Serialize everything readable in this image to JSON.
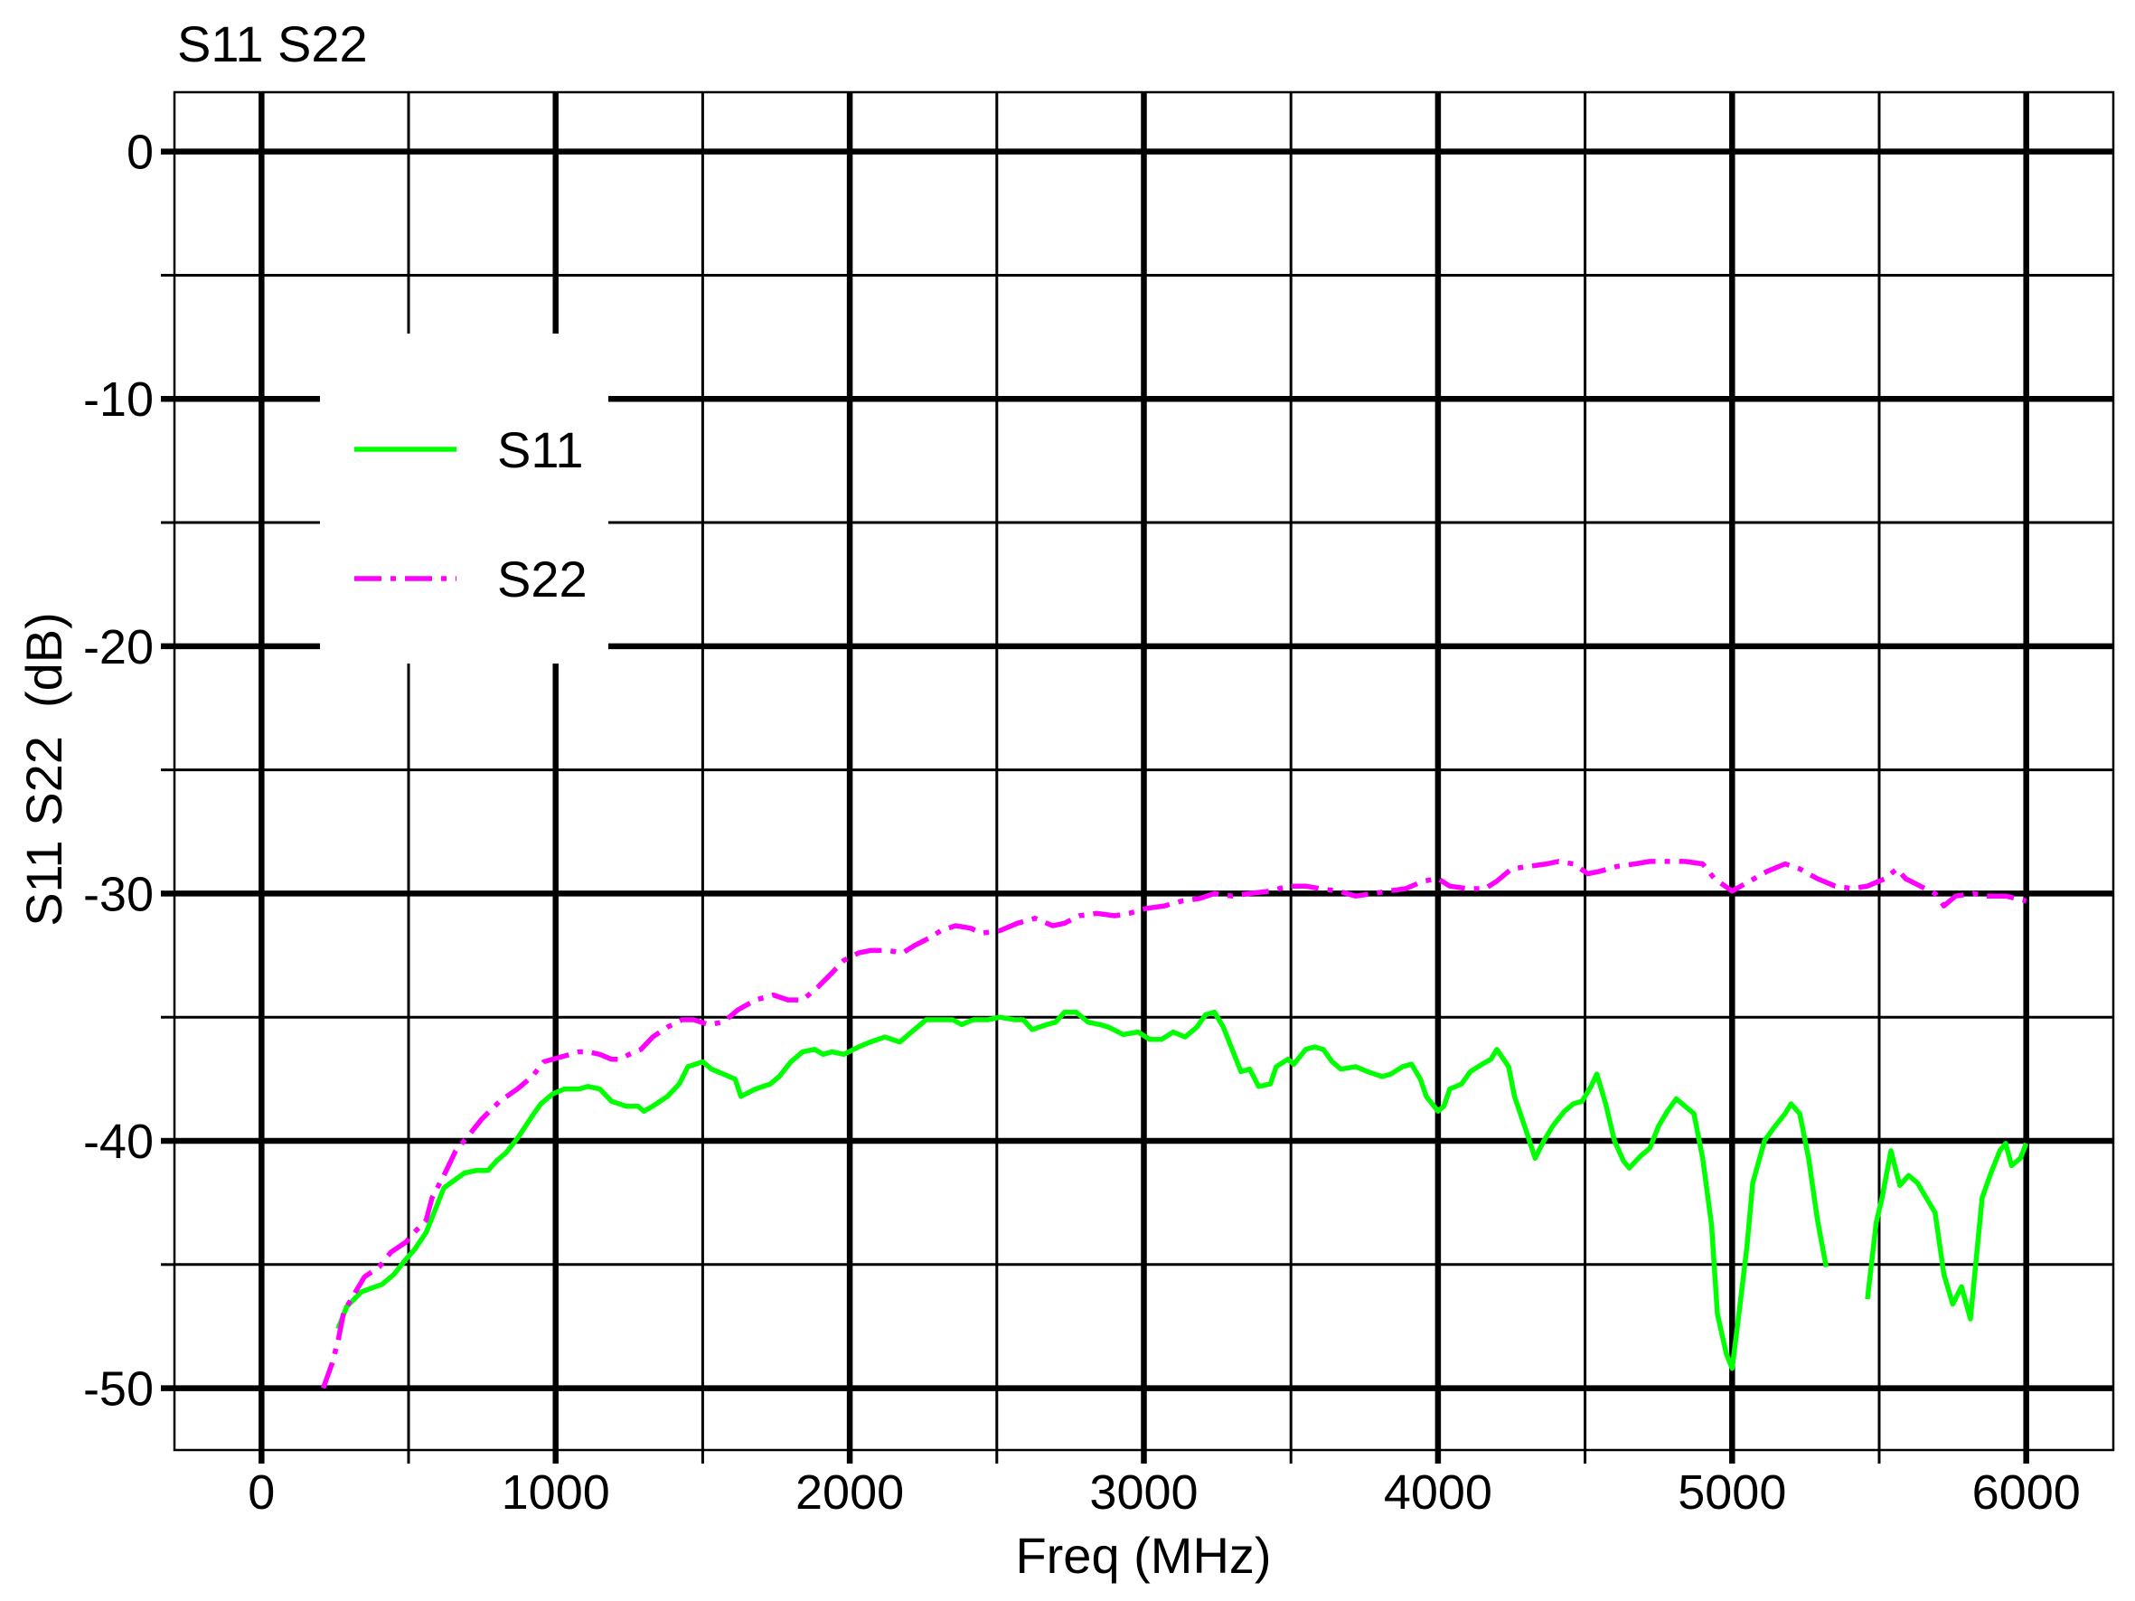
{
  "chart_data": {
    "type": "line",
    "title": "S11 S22",
    "xlabel": "Freq (MHz)",
    "ylabel": "S11 S22  (dB)",
    "xlim": [
      -296,
      6296
    ],
    "ylim": [
      -52.5,
      2.4
    ],
    "x_ticks": [
      0,
      1000,
      2000,
      3000,
      4000,
      5000,
      6000
    ],
    "x_tick_labels": [
      "0",
      "1000",
      "2000",
      "3000",
      "4000",
      "5000",
      "6000"
    ],
    "x_minor_ticks": [
      500,
      1500,
      2500,
      3500,
      4500,
      5500
    ],
    "y_ticks": [
      0,
      -10,
      -20,
      -30,
      -40,
      -50
    ],
    "y_tick_labels": [
      "0",
      "-10",
      "-20",
      "-30",
      "-40",
      "-50"
    ],
    "y_minor_ticks": [
      -5,
      -15,
      -25,
      -35,
      -45
    ],
    "grid": true,
    "legend": {
      "position": "upper-left"
    },
    "series": [
      {
        "name": "S11",
        "color": "#00ff00",
        "line_style": "solid",
        "x": [
          260,
          290,
          340,
          410,
          450,
          490,
          520,
          560,
          590,
          620,
          690,
          730,
          770,
          800,
          830,
          870,
          920,
          950,
          990,
          1030,
          1080,
          1110,
          1150,
          1190,
          1240,
          1280,
          1300,
          1330,
          1380,
          1420,
          1450,
          1500,
          1530,
          1570,
          1610,
          1630,
          1680,
          1730,
          1760,
          1800,
          1840,
          1880,
          1910,
          1940,
          1980,
          2030,
          2070,
          2120,
          2170,
          2210,
          2260,
          2310,
          2350,
          2380,
          2420,
          2470,
          2510,
          2560,
          2590,
          2620,
          2670,
          2700,
          2730,
          2770,
          2810,
          2850,
          2880,
          2930,
          2980,
          3020,
          3060,
          3100,
          3140,
          3180,
          3210,
          3240,
          3270,
          3300,
          3330,
          3360,
          3390,
          3430,
          3450,
          3490,
          3510,
          3550,
          3580,
          3610,
          3640,
          3670,
          3720,
          3760,
          3810,
          3840,
          3880,
          3910,
          3940,
          3960,
          4000,
          4020,
          4040,
          4080,
          4110,
          4150,
          4180,
          4200,
          4240,
          4260,
          4300,
          4330,
          4360,
          4390,
          4430,
          4460,
          4490,
          4520,
          4540,
          4570,
          4600,
          4630,
          4650,
          4690,
          4720,
          4750,
          4780,
          4810,
          4840,
          4870,
          4900,
          4930,
          4950,
          4980,
          5000,
          5020,
          5050,
          5070,
          5110,
          5140,
          5180,
          5200,
          5230,
          5260,
          5290,
          5320,
          null,
          5460,
          5490,
          5510,
          5540,
          5570,
          5600,
          5630,
          5660,
          5690,
          5720,
          5750,
          5780,
          5810,
          5850,
          5880,
          5910,
          5930,
          5950,
          5980,
          6000
        ],
        "y": [
          -47.6,
          -46.7,
          -46.1,
          -45.8,
          -45.4,
          -44.8,
          -44.4,
          -43.7,
          -42.8,
          -41.9,
          -41.3,
          -41.2,
          -41.2,
          -40.8,
          -40.5,
          -39.9,
          -39.0,
          -38.5,
          -38.1,
          -37.9,
          -37.9,
          -37.8,
          -37.9,
          -38.4,
          -38.6,
          -38.6,
          -38.8,
          -38.6,
          -38.2,
          -37.7,
          -37.0,
          -36.8,
          -37.1,
          -37.3,
          -37.5,
          -38.2,
          -37.9,
          -37.7,
          -37.4,
          -36.8,
          -36.4,
          -36.3,
          -36.5,
          -36.4,
          -36.5,
          -36.2,
          -36.0,
          -35.8,
          -36.0,
          -35.6,
          -35.1,
          -35.1,
          -35.1,
          -35.3,
          -35.1,
          -35.1,
          -35.0,
          -35.1,
          -35.1,
          -35.5,
          -35.3,
          -35.2,
          -34.8,
          -34.8,
          -35.2,
          -35.3,
          -35.4,
          -35.7,
          -35.6,
          -35.9,
          -35.9,
          -35.6,
          -35.8,
          -35.4,
          -34.9,
          -34.8,
          -35.4,
          -36.3,
          -37.2,
          -37.1,
          -37.8,
          -37.7,
          -37.0,
          -36.7,
          -36.9,
          -36.3,
          -36.2,
          -36.3,
          -36.8,
          -37.1,
          -37.0,
          -37.2,
          -37.4,
          -37.3,
          -37.0,
          -36.9,
          -37.5,
          -38.2,
          -38.8,
          -38.6,
          -37.9,
          -37.7,
          -37.2,
          -36.9,
          -36.7,
          -36.3,
          -37.0,
          -38.2,
          -39.6,
          -40.7,
          -40.0,
          -39.4,
          -38.8,
          -38.5,
          -38.4,
          -37.8,
          -37.3,
          -38.5,
          -40.0,
          -40.8,
          -41.1,
          -40.6,
          -40.3,
          -39.4,
          -38.8,
          -38.3,
          -38.6,
          -38.9,
          -40.7,
          -43.4,
          -47.0,
          -48.6,
          -49.2,
          -47.3,
          -44.3,
          -41.7,
          -40.0,
          -39.5,
          -38.9,
          -38.5,
          -38.9,
          -40.7,
          -43.2,
          -45.1,
          null,
          -46.4,
          -43.3,
          -42.3,
          -40.4,
          -41.8,
          -41.4,
          -41.7,
          -42.3,
          -42.9,
          -45.4,
          -46.6,
          -45.9,
          -47.2,
          -42.3,
          -41.3,
          -40.4,
          -40.1,
          -41.0,
          -40.7,
          -40.1
        ]
      },
      {
        "name": "S22",
        "color": "#ff00ff",
        "line_style": "dash-dot",
        "x": [
          210,
          240,
          260,
          280,
          320,
          350,
          400,
          440,
          490,
          520,
          560,
          580,
          620,
          660,
          710,
          750,
          810,
          870,
          920,
          960,
          1020,
          1080,
          1110,
          1150,
          1190,
          1220,
          1250,
          1290,
          1330,
          1380,
          1430,
          1470,
          1520,
          1570,
          1620,
          1680,
          1740,
          1790,
          1840,
          1890,
          1940,
          1980,
          2030,
          2070,
          2130,
          2180,
          2220,
          2270,
          2310,
          2360,
          2410,
          2450,
          2510,
          2570,
          2630,
          2690,
          2730,
          2780,
          2840,
          2900,
          2950,
          3010,
          3070,
          3130,
          3190,
          3240,
          3300,
          3360,
          3430,
          3490,
          3550,
          3600,
          3660,
          3720,
          3780,
          3830,
          3890,
          3950,
          4000,
          4040,
          4100,
          4160,
          4200,
          4250,
          4310,
          4370,
          4410,
          4460,
          4510,
          4550,
          4610,
          4670,
          4720,
          4780,
          4840,
          4900,
          4940,
          5000,
          5060,
          5120,
          5180,
          5230,
          5290,
          5350,
          5410,
          5460,
          5520,
          5560,
          5590,
          5640,
          5690,
          5720,
          5760,
          5820,
          5870,
          5930,
          6000
        ],
        "y": [
          -50.0,
          -49.0,
          -48.1,
          -46.9,
          -46.1,
          -45.5,
          -45.1,
          -44.5,
          -44.1,
          -43.7,
          -43.2,
          -42.3,
          -41.4,
          -40.4,
          -39.7,
          -39.1,
          -38.4,
          -37.9,
          -37.4,
          -36.8,
          -36.6,
          -36.4,
          -36.4,
          -36.5,
          -36.7,
          -36.7,
          -36.5,
          -36.3,
          -35.8,
          -35.4,
          -35.1,
          -35.1,
          -35.3,
          -35.2,
          -34.7,
          -34.3,
          -34.1,
          -34.3,
          -34.3,
          -33.8,
          -33.2,
          -32.7,
          -32.4,
          -32.3,
          -32.3,
          -32.4,
          -32.1,
          -31.8,
          -31.5,
          -31.3,
          -31.4,
          -31.6,
          -31.5,
          -31.2,
          -31.0,
          -31.3,
          -31.2,
          -30.9,
          -30.8,
          -30.9,
          -30.8,
          -30.6,
          -30.5,
          -30.3,
          -30.2,
          -30.0,
          -30.1,
          -30.0,
          -29.9,
          -29.7,
          -29.7,
          -29.8,
          -29.9,
          -30.1,
          -30.0,
          -29.9,
          -29.8,
          -29.5,
          -29.4,
          -29.7,
          -29.8,
          -29.8,
          -29.5,
          -29.0,
          -28.9,
          -28.8,
          -28.7,
          -28.8,
          -29.2,
          -29.1,
          -28.9,
          -28.8,
          -28.7,
          -28.7,
          -28.7,
          -28.8,
          -29.4,
          -29.9,
          -29.5,
          -29.1,
          -28.8,
          -29.0,
          -29.4,
          -29.7,
          -29.8,
          -29.7,
          -29.4,
          -29.0,
          -29.4,
          -29.7,
          -30.0,
          -30.5,
          -30.1,
          -30.0,
          -30.1,
          -30.1,
          -30.3
        ]
      }
    ]
  }
}
